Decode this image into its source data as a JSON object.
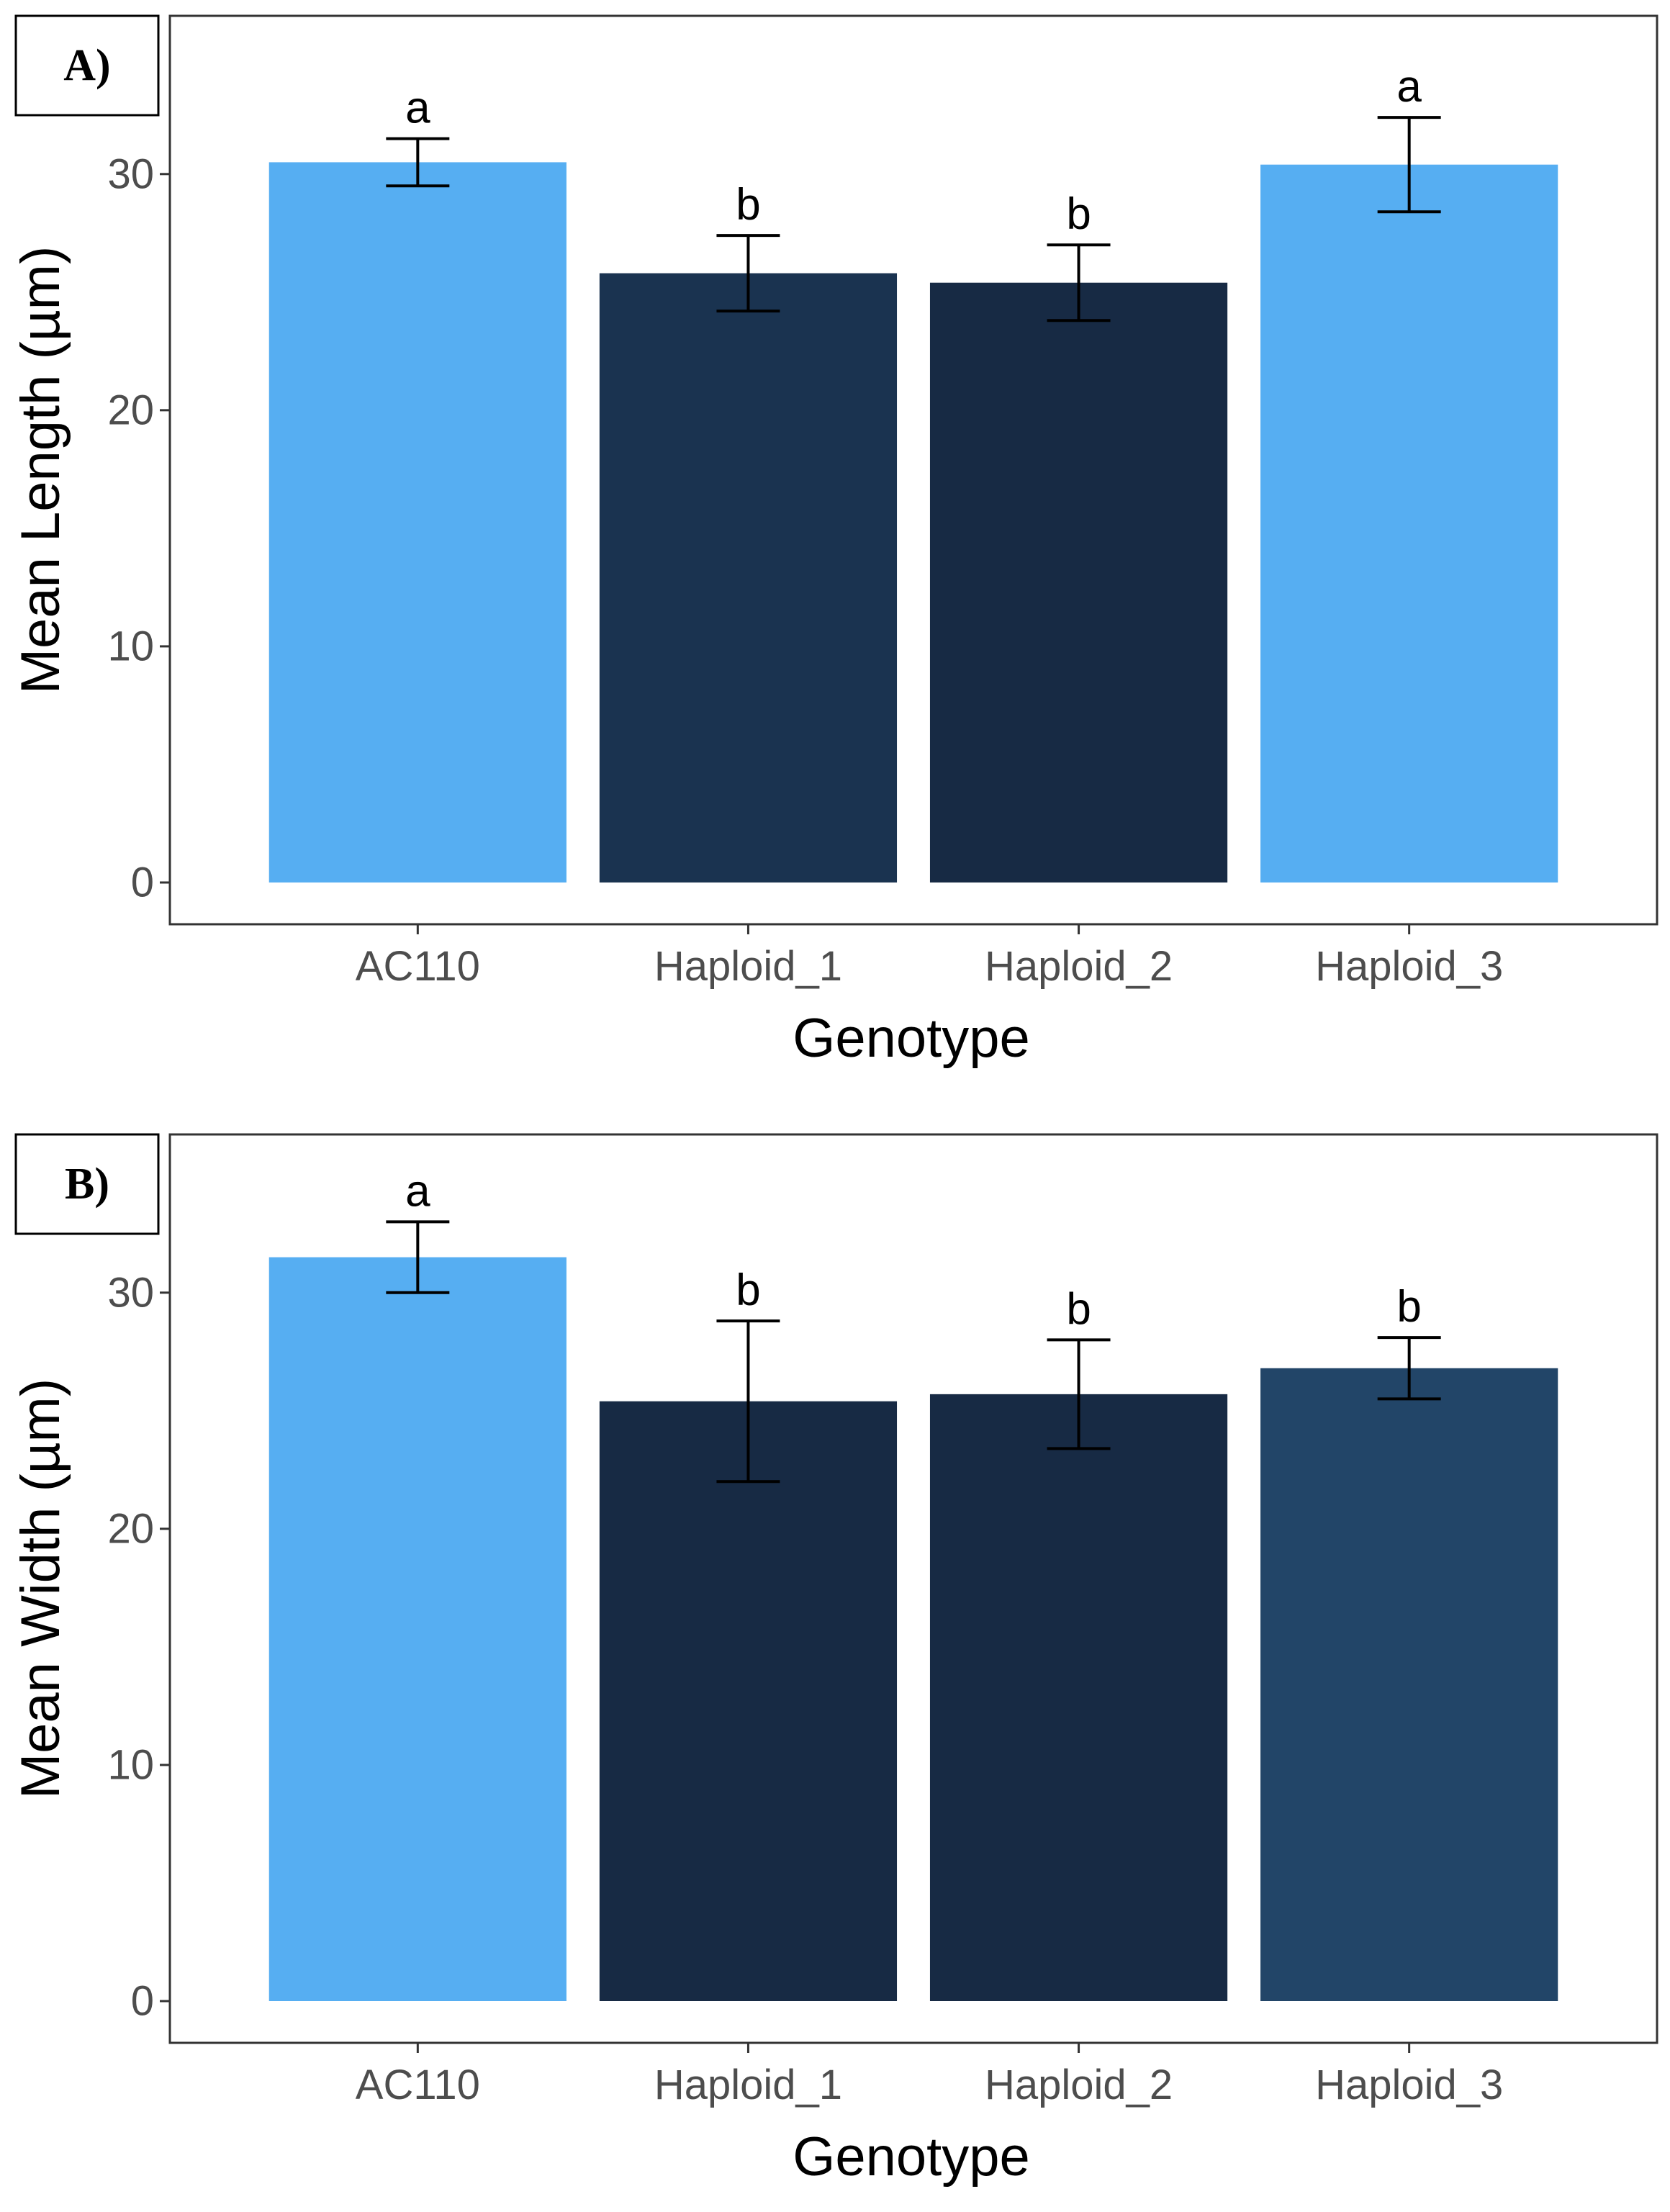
{
  "chart_data": [
    {
      "type": "bar",
      "panel_label": "A)",
      "xlabel": "Genotype",
      "ylabel": "Mean Length (µm)",
      "ylim": [
        0,
        36.7
      ],
      "yticks": [
        0,
        10,
        20,
        30
      ],
      "categories": [
        "AC110",
        "Haploid_1",
        "Haploid_2",
        "Haploid_3"
      ],
      "values": [
        30.5,
        25.8,
        25.4,
        30.4
      ],
      "error": [
        1.0,
        1.6,
        1.6,
        2.0
      ],
      "significance": [
        "a",
        "b",
        "b",
        "a"
      ],
      "colors": [
        "#56aef2",
        "#1a3350",
        "#172a44",
        "#56aef2"
      ],
      "grid": false
    },
    {
      "type": "bar",
      "panel_label": "B)",
      "xlabel": "Genotype",
      "ylabel": "Mean Width (µm)",
      "ylim": [
        0,
        36.7
      ],
      "yticks": [
        0,
        10,
        20,
        30
      ],
      "categories": [
        "AC110",
        "Haploid_1",
        "Haploid_2",
        "Haploid_3"
      ],
      "values": [
        31.5,
        25.4,
        25.7,
        26.8
      ],
      "error": [
        1.5,
        3.4,
        2.3,
        1.3
      ],
      "significance": [
        "a",
        "b",
        "b",
        "b"
      ],
      "colors": [
        "#56aef2",
        "#172a44",
        "#172a44",
        "#224568"
      ],
      "grid": false
    }
  ]
}
